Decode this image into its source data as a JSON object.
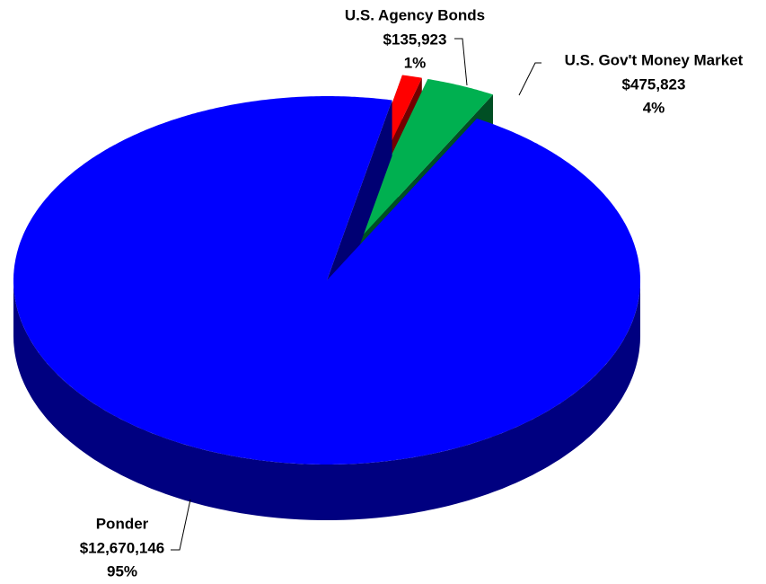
{
  "chart_data": {
    "type": "pie",
    "three_d": true,
    "categories": [
      "U.S. Agency Bonds",
      "U.S. Gov't Money Market",
      "Ponder"
    ],
    "values": [
      135923,
      475823,
      12670146
    ],
    "value_labels": [
      "$135,923",
      "$475,823",
      "$12,670,146"
    ],
    "percents": [
      1,
      4,
      95
    ],
    "percent_labels": [
      "1%",
      "4%",
      "95%"
    ],
    "colors": [
      "#ff0000",
      "#00b050",
      "#0000ff"
    ],
    "exploded": [
      true,
      true,
      false
    ]
  }
}
